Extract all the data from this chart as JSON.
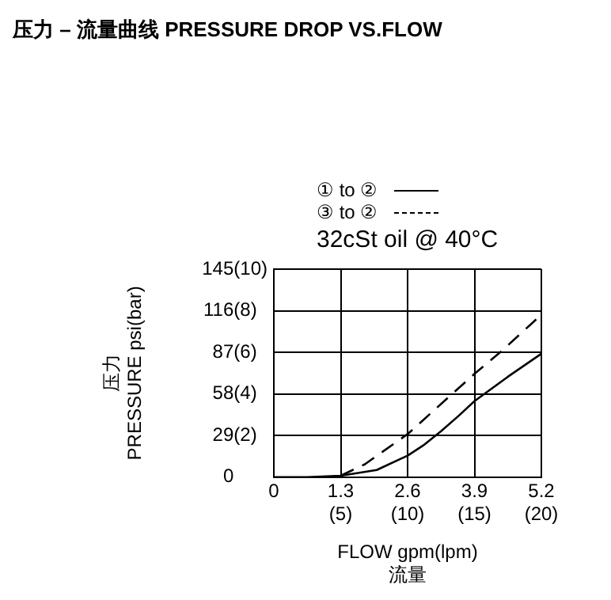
{
  "chart_data": {
    "type": "line",
    "title": "压力 – 流量曲线 PRESSURE DROP VS.FLOW",
    "xlabel": "FLOW gpm(lpm)\n流量",
    "ylabel": "压力\nPRESSURE psi(bar)",
    "legend": "top",
    "grid": true,
    "marker": "none",
    "annotations": [
      "32cSt  oil @ 40°C"
    ],
    "xlim": [
      0,
      5.2
    ],
    "xticks": [
      0,
      1.3,
      2.6,
      3.9,
      5.2
    ],
    "x2lim": [
      0,
      20
    ],
    "x2ticks": [
      {
        "value": 5,
        "label": "(5)"
      },
      {
        "value": 10,
        "label": "(10)"
      },
      {
        "value": 15,
        "label": "(15)"
      },
      {
        "value": 20,
        "label": "(20)"
      }
    ],
    "ylim": [
      0,
      145
    ],
    "yticks": [
      0,
      29,
      58,
      87,
      116,
      145
    ],
    "y2lim": [
      0,
      10
    ],
    "y2ticks": [
      {
        "value": 2,
        "label": "(2)"
      },
      {
        "value": 4,
        "label": "(4)"
      },
      {
        "value": 6,
        "label": "(6)"
      },
      {
        "value": 8,
        "label": "(8)"
      },
      {
        "value": 10,
        "label": "(10)"
      }
    ],
    "series": [
      {
        "name": "① to ②",
        "color": "#000000",
        "line_style": "solid",
        "x": [
          0,
          0.65,
          1.3,
          2.0,
          2.6,
          2.9,
          3.25,
          3.6,
          3.9,
          4.55,
          5.2
        ],
        "values": [
          0,
          0,
          1,
          5,
          15,
          22,
          32,
          43,
          53,
          70,
          86
        ]
      },
      {
        "name": "③ to ②",
        "color": "#000000",
        "line_style": "dashed",
        "x": [
          1.3,
          1.77,
          2.6,
          3.9,
          4.4,
          5.1
        ],
        "values": [
          1,
          9,
          30,
          72,
          87,
          110
        ]
      }
    ]
  }
}
